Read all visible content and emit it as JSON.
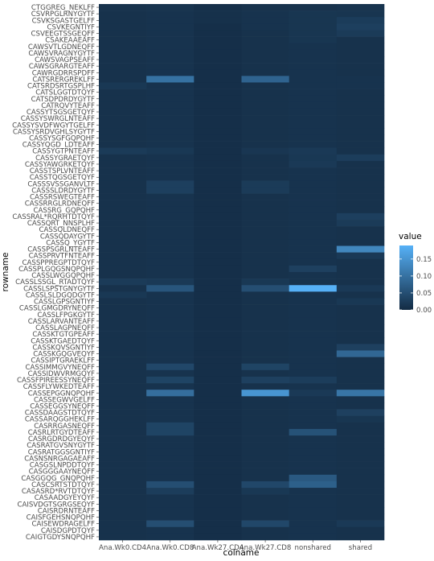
{
  "chart_data": {
    "type": "heatmap",
    "xlabel": "colname",
    "ylabel": "rowname",
    "columns": [
      "Ana.Wk0.CD4",
      "Ana.Wk0.CD8",
      "Ana.Wk27.CD4",
      "Ana.Wk27.CD8",
      "nonshared",
      "shared"
    ],
    "rows": [
      "CTGGREG_NEKLFF",
      "CSVRPGLRNYGYTF",
      "CSVKSGASTGELFF",
      "CSVKEGNTIYF",
      "CSVEEGTSSGEQFF",
      "CSAKEAAEAFF",
      "CAWSVTLGDNEQFF",
      "CAWSVRAGNYGYTF",
      "CAWSVAGPSEAFF",
      "CAWSGRARGTEAFF",
      "CAWRGDRRSPDFF",
      "CATSRERGREKLFF",
      "CATSRDSRTGSPLHF",
      "CATSLGGTDTQYF",
      "CATSDPDRDYGYTF",
      "CATRQVYTEAFF",
      "CASSYTSGSGETQYF",
      "CASSYSWRGLNTEAFF",
      "CASSYSVDFWGYTGELFF",
      "CASSYSRDVGHLSYGYTF",
      "CASSYSGFGQPQHF",
      "CASSYQGD_LDTEAFF",
      "CASSYGTPNTEAFF",
      "CASSYGRAETQYF",
      "CASSYAWGRKETQYF",
      "CASSTSPLVNTEAFF",
      "CASSTQGSGETQYF",
      "CASSSVSSGANVLTF",
      "CASSSLDRDYGYTF",
      "CASSRSWEGTEAFF",
      "CASSRRGLRDNEQFF",
      "CASSRG_GQPQHF",
      "CASSRAL*RQRHTDTQYF",
      "CASSQRT_NNSPLHF",
      "CASSQLDNEQFF",
      "CASSQDAYGYTF",
      "CASSQ_YGYTF",
      "CASSPSGRLNTEAFF",
      "CASSPRVTFNTEAFF",
      "CASSPPREGPTDTQYF",
      "CASSPLGQGSNQPQHF",
      "CASSLWGGQPQHF",
      "CASSLSSGL_RTADTQYF",
      "CASSLSPSTGNYGYTF",
      "CASSLSLDGQDGYTF",
      "CASSLGPSGNTIYF",
      "CASSLGMGDRYNEQFF",
      "CASSLFPGKGYTF",
      "CASSLARVANTEAFF",
      "CASSLAGPNEQFF",
      "CASSKTGTGPEAFF",
      "CASSKTGAEDTQYF",
      "CASSKQVSGNTIYF",
      "CASSKGQGVEQYF",
      "CASSIPTGRAEKLFF",
      "CASSIMMGVYNEQFF",
      "CASSIDWVRMGQYF",
      "CASSFPIREESSYNEQFF",
      "CASSFLYWKEDTEAFF",
      "CASSEPGGNQPQHF",
      "CASSEGWVGELFF",
      "CASSEGGSYNEQFF",
      "CASSDAAGSTDTQYF",
      "CASSARQGGHEKLFF",
      "CASRRGASNEQFF",
      "CASRLRTGYDTEAFF",
      "CASRGDRDGYEQYF",
      "CASRATGVSNYGYTF",
      "CASRATGGSGNTIYF",
      "CASNSNRGAGAEAFF",
      "CASGSLNPDDTQYF",
      "CASGGGAAYNEQFF",
      "CASGGQG_GNQPQHF",
      "CASCSRTSTDTQYF",
      "CASASRD*RVTDTQYF",
      "CASAADGYEYQYF",
      "CAISVDGTSGRGSEQYF",
      "CAISRDRNTEAFF",
      "CAISFGEHSNQPQHF",
      "CAISEWDRAGELFF",
      "CAISDGPDTQYF",
      "CAIGTGDYSNQPQHF"
    ],
    "values": [
      [
        0.01,
        0.012,
        0.006,
        0.01,
        0.01,
        0.012
      ],
      [
        0.01,
        0.012,
        0.008,
        0.012,
        0.015,
        0.014
      ],
      [
        0.01,
        0.012,
        0.008,
        0.012,
        0.015,
        0.024
      ],
      [
        0.01,
        0.012,
        0.006,
        0.012,
        0.015,
        0.028
      ],
      [
        0.01,
        0.012,
        0.006,
        0.01,
        0.015,
        0.022
      ],
      [
        0.01,
        0.012,
        0.006,
        0.01,
        0.015,
        0.01
      ],
      [
        0.01,
        0.012,
        0.006,
        0.01,
        0.012,
        0.01
      ],
      [
        0.01,
        0.012,
        0.006,
        0.01,
        0.012,
        0.01
      ],
      [
        0.01,
        0.012,
        0.006,
        0.01,
        0.012,
        0.01
      ],
      [
        0.01,
        0.012,
        0.006,
        0.01,
        0.012,
        0.01
      ],
      [
        0.01,
        0.012,
        0.006,
        0.01,
        0.012,
        0.01
      ],
      [
        0.01,
        0.1,
        0.006,
        0.08,
        0.012,
        0.012
      ],
      [
        0.018,
        0.012,
        0.006,
        0.01,
        0.012,
        0.012
      ],
      [
        0.01,
        0.012,
        0.006,
        0.01,
        0.012,
        0.01
      ],
      [
        0.01,
        0.012,
        0.006,
        0.01,
        0.012,
        0.01
      ],
      [
        0.01,
        0.012,
        0.006,
        0.01,
        0.012,
        0.01
      ],
      [
        0.01,
        0.012,
        0.006,
        0.01,
        0.012,
        0.01
      ],
      [
        0.01,
        0.012,
        0.006,
        0.01,
        0.012,
        0.01
      ],
      [
        0.01,
        0.012,
        0.006,
        0.01,
        0.012,
        0.01
      ],
      [
        0.01,
        0.012,
        0.006,
        0.01,
        0.012,
        0.01
      ],
      [
        0.01,
        0.012,
        0.006,
        0.01,
        0.012,
        0.01
      ],
      [
        0.01,
        0.012,
        0.006,
        0.01,
        0.012,
        0.01
      ],
      [
        0.022,
        0.018,
        0.006,
        0.016,
        0.02,
        0.01
      ],
      [
        0.01,
        0.012,
        0.006,
        0.01,
        0.018,
        0.025
      ],
      [
        0.01,
        0.012,
        0.006,
        0.01,
        0.02,
        0.01
      ],
      [
        0.01,
        0.012,
        0.006,
        0.01,
        0.012,
        0.01
      ],
      [
        0.01,
        0.012,
        0.006,
        0.01,
        0.012,
        0.01
      ],
      [
        0.01,
        0.028,
        0.006,
        0.022,
        0.012,
        0.01
      ],
      [
        0.01,
        0.028,
        0.006,
        0.022,
        0.012,
        0.01
      ],
      [
        0.01,
        0.012,
        0.006,
        0.01,
        0.012,
        0.01
      ],
      [
        0.01,
        0.012,
        0.006,
        0.01,
        0.012,
        0.01
      ],
      [
        0.01,
        0.012,
        0.006,
        0.01,
        0.012,
        0.01
      ],
      [
        0.01,
        0.012,
        0.006,
        0.01,
        0.012,
        0.028
      ],
      [
        0.01,
        0.012,
        0.006,
        0.01,
        0.012,
        0.022
      ],
      [
        0.01,
        0.012,
        0.006,
        0.01,
        0.012,
        0.01
      ],
      [
        0.01,
        0.012,
        0.006,
        0.01,
        0.012,
        0.01
      ],
      [
        0.01,
        0.012,
        0.006,
        0.01,
        0.012,
        0.01
      ],
      [
        0.01,
        0.012,
        0.006,
        0.01,
        0.012,
        0.13
      ],
      [
        0.01,
        0.012,
        0.006,
        0.01,
        0.012,
        0.02
      ],
      [
        0.01,
        0.012,
        0.006,
        0.01,
        0.012,
        0.01
      ],
      [
        0.01,
        0.012,
        0.006,
        0.01,
        0.03,
        0.01
      ],
      [
        0.01,
        0.012,
        0.006,
        0.01,
        0.012,
        0.01
      ],
      [
        0.022,
        0.02,
        0.006,
        0.018,
        0.012,
        0.01
      ],
      [
        0.01,
        0.06,
        0.006,
        0.05,
        0.19,
        0.02
      ],
      [
        0.018,
        0.012,
        0.006,
        0.01,
        0.012,
        0.01
      ],
      [
        0.01,
        0.012,
        0.006,
        0.01,
        0.012,
        0.018
      ],
      [
        0.01,
        0.012,
        0.006,
        0.01,
        0.012,
        0.01
      ],
      [
        0.01,
        0.012,
        0.006,
        0.01,
        0.012,
        0.01
      ],
      [
        0.01,
        0.012,
        0.006,
        0.01,
        0.012,
        0.01
      ],
      [
        0.01,
        0.012,
        0.006,
        0.01,
        0.012,
        0.01
      ],
      [
        0.01,
        0.012,
        0.006,
        0.01,
        0.012,
        0.01
      ],
      [
        0.01,
        0.012,
        0.006,
        0.01,
        0.012,
        0.01
      ],
      [
        0.01,
        0.012,
        0.006,
        0.01,
        0.012,
        0.03
      ],
      [
        0.01,
        0.012,
        0.006,
        0.01,
        0.012,
        0.085
      ],
      [
        0.01,
        0.012,
        0.006,
        0.01,
        0.012,
        0.01
      ],
      [
        0.01,
        0.04,
        0.006,
        0.035,
        0.012,
        0.01
      ],
      [
        0.01,
        0.012,
        0.006,
        0.01,
        0.012,
        0.01
      ],
      [
        0.01,
        0.035,
        0.006,
        0.03,
        0.025,
        0.01
      ],
      [
        0.01,
        0.012,
        0.006,
        0.01,
        0.012,
        0.01
      ],
      [
        0.01,
        0.095,
        0.006,
        0.15,
        0.02,
        0.105
      ],
      [
        0.01,
        0.012,
        0.006,
        0.01,
        0.012,
        0.01
      ],
      [
        0.01,
        0.012,
        0.006,
        0.01,
        0.012,
        0.01
      ],
      [
        0.01,
        0.012,
        0.006,
        0.01,
        0.012,
        0.03
      ],
      [
        0.01,
        0.012,
        0.006,
        0.01,
        0.012,
        0.015
      ],
      [
        0.01,
        0.035,
        0.006,
        0.01,
        0.012,
        0.01
      ],
      [
        0.01,
        0.035,
        0.006,
        0.01,
        0.055,
        0.01
      ],
      [
        0.01,
        0.012,
        0.006,
        0.01,
        0.012,
        0.01
      ],
      [
        0.01,
        0.012,
        0.006,
        0.01,
        0.012,
        0.01
      ],
      [
        0.01,
        0.012,
        0.006,
        0.01,
        0.012,
        0.01
      ],
      [
        0.01,
        0.012,
        0.006,
        0.01,
        0.012,
        0.01
      ],
      [
        0.01,
        0.012,
        0.006,
        0.01,
        0.012,
        0.01
      ],
      [
        0.01,
        0.012,
        0.006,
        0.01,
        0.012,
        0.01
      ],
      [
        0.01,
        0.012,
        0.006,
        0.01,
        0.065,
        0.01
      ],
      [
        0.01,
        0.05,
        0.006,
        0.04,
        0.075,
        0.01
      ],
      [
        0.01,
        0.025,
        0.006,
        0.018,
        0.012,
        0.01
      ],
      [
        0.01,
        0.012,
        0.006,
        0.01,
        0.012,
        0.01
      ],
      [
        0.01,
        0.012,
        0.006,
        0.01,
        0.012,
        0.01
      ],
      [
        0.01,
        0.012,
        0.006,
        0.01,
        0.012,
        0.01
      ],
      [
        0.01,
        0.012,
        0.006,
        0.01,
        0.012,
        0.01
      ],
      [
        0.01,
        0.05,
        0.006,
        0.04,
        0.012,
        0.02
      ],
      [
        0.01,
        0.012,
        0.006,
        0.01,
        0.012,
        0.01
      ],
      [
        0.01,
        0.012,
        0.006,
        0.01,
        0.012,
        0.01
      ]
    ],
    "legend": {
      "title": "value",
      "ticks": [
        0.0,
        0.05,
        0.1,
        0.15
      ],
      "tick_labels": [
        "0.00",
        "0.05",
        "0.10",
        "0.15"
      ],
      "range": [
        0.0,
        0.19
      ]
    },
    "color_low": "#132b43",
    "color_high": "#56b1f7",
    "panel_background": "#ebebeb",
    "grid": false,
    "legend_position": "right"
  }
}
